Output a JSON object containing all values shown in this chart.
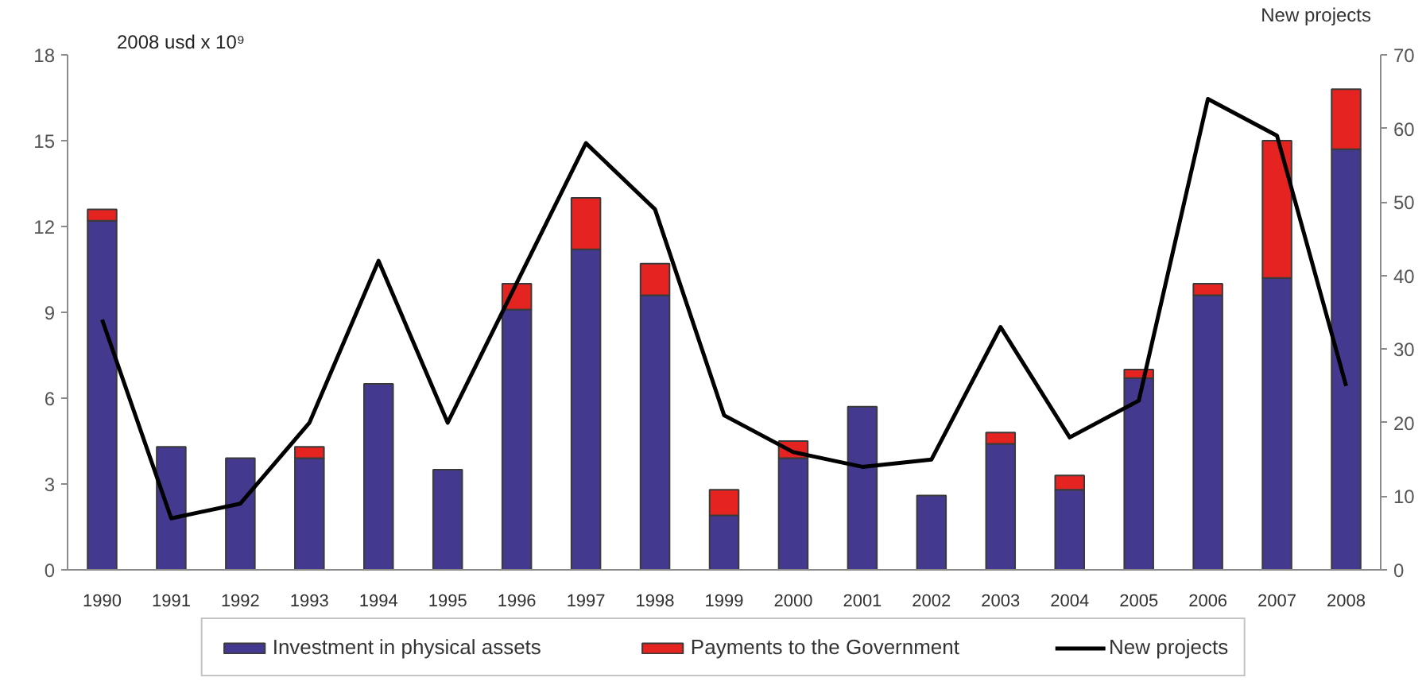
{
  "chart_data": {
    "type": "bar",
    "ylabel": "2008 usd x 10⁹",
    "y2label": "New projects",
    "categories": [
      "1990",
      "1991",
      "1992",
      "1993",
      "1994",
      "1995",
      "1996",
      "1997",
      "1998",
      "1999",
      "2000",
      "2001",
      "2002",
      "2003",
      "2004",
      "2005",
      "2006",
      "2007",
      "2008"
    ],
    "stacked": true,
    "series": [
      {
        "name": "Investment in physical assets",
        "color": "#433a8f",
        "values": [
          12.2,
          4.3,
          3.9,
          3.9,
          6.5,
          3.5,
          9.1,
          11.2,
          9.6,
          1.9,
          3.9,
          5.7,
          2.6,
          4.4,
          2.8,
          6.7,
          9.6,
          10.2,
          14.7
        ]
      },
      {
        "name": "Payments to the Government",
        "color": "#e52421",
        "values": [
          0.4,
          null,
          null,
          0.4,
          null,
          null,
          0.9,
          1.8,
          1.1,
          0.9,
          0.6,
          null,
          null,
          0.4,
          0.5,
          0.3,
          0.4,
          4.8,
          2.1
        ]
      },
      {
        "name": "New projects",
        "type": "line",
        "axis": "y2",
        "color": "#000000",
        "values": [
          34,
          7,
          9,
          20,
          42,
          20,
          39,
          58,
          49,
          21,
          16,
          14,
          15,
          33,
          18,
          23,
          64,
          59,
          25
        ]
      }
    ],
    "ylim": [
      0,
      18
    ],
    "yticks": [
      0,
      3,
      6,
      9,
      12,
      15,
      18
    ],
    "y2lim": [
      0,
      70
    ],
    "y2ticks": [
      0,
      10,
      20,
      30,
      40,
      50,
      60,
      70
    ],
    "legend": "bottom",
    "grid": false
  }
}
